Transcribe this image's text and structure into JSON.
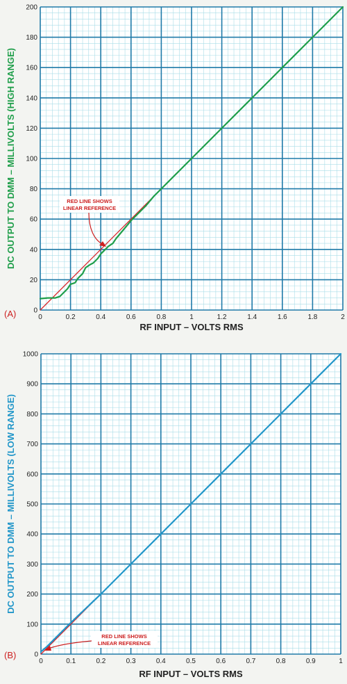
{
  "chart_data": [
    {
      "type": "line",
      "panel_label": "(A)",
      "xlabel": "RF INPUT – VOLTS RMS",
      "ylabel": "DC OUTPUT TO DMM – MILLIVOLTS (HIGH RANGE)",
      "xlim": [
        0,
        2
      ],
      "ylim": [
        0,
        200
      ],
      "x_ticks": [
        "0",
        "0.2",
        "0.4",
        "0.6",
        "0.8",
        "1",
        "1.2",
        "1.4",
        "1.6",
        "1.8",
        "2"
      ],
      "y_ticks": [
        "0",
        "20",
        "40",
        "60",
        "80",
        "100",
        "120",
        "140",
        "160",
        "180",
        "200"
      ],
      "grid": true,
      "annotation": {
        "lines": [
          "RED LINE SHOWS",
          "LINEAR REFERENCE"
        ]
      },
      "series": [
        {
          "color": "#d9262b",
          "x": [
            0,
            2
          ],
          "y": [
            0,
            200
          ]
        },
        {
          "color": "#1f9e4a",
          "x": [
            0,
            0.05,
            0.1,
            0.13,
            0.15,
            0.18,
            0.2,
            0.23,
            0.25,
            0.28,
            0.3,
            0.33,
            0.35,
            0.38,
            0.4,
            0.43,
            0.45,
            0.48,
            0.5,
            0.55,
            0.6,
            0.65,
            0.7,
            0.75,
            0.8,
            0.9,
            1.0,
            1.2,
            1.4,
            1.6,
            1.8,
            2.0
          ],
          "y": [
            7.5,
            8,
            8,
            9,
            11,
            14,
            17,
            18,
            21,
            24,
            28,
            30,
            31,
            34,
            37,
            40,
            42,
            44,
            47,
            53,
            59,
            64,
            69,
            75,
            80,
            90,
            100,
            120,
            140,
            160,
            180,
            200
          ]
        }
      ]
    },
    {
      "type": "line",
      "panel_label": "(B)",
      "xlabel": "RF INPUT – VOLTS RMS",
      "ylabel": "DC OUTPUT TO DMM – MILLIVOLTS (LOW RANGE)",
      "xlim": [
        0,
        1
      ],
      "ylim": [
        0,
        1000
      ],
      "x_ticks": [
        "0",
        "0.1",
        "0.2",
        "0.3",
        "0.4",
        "0.5",
        "0.6",
        "0.7",
        "0.8",
        "0.9",
        "1"
      ],
      "y_ticks": [
        "0",
        "100",
        "200",
        "300",
        "400",
        "500",
        "600",
        "700",
        "800",
        "900",
        "1000"
      ],
      "grid": true,
      "annotation": {
        "lines": [
          "RED LINE SHOWS",
          "LINEAR REFERENCE"
        ]
      },
      "series": [
        {
          "color": "#d9262b",
          "x": [
            0,
            1
          ],
          "y": [
            0,
            1000
          ]
        },
        {
          "color": "#2196c9",
          "x": [
            0,
            0.02,
            0.05,
            0.1,
            0.2,
            0.3,
            0.4,
            0.5,
            0.6,
            0.7,
            0.8,
            0.9,
            1.0
          ],
          "y": [
            8,
            25,
            55,
            105,
            200,
            300,
            400,
            500,
            600,
            700,
            800,
            900,
            1000
          ]
        }
      ]
    }
  ],
  "style": {
    "grid_major": "#1f7aa8",
    "grid_minor": "#a9dde8",
    "ylabel_color_a": "#1f9e4a",
    "ylabel_color_b": "#2196c9",
    "annotation_color": "#cc1f1f"
  }
}
